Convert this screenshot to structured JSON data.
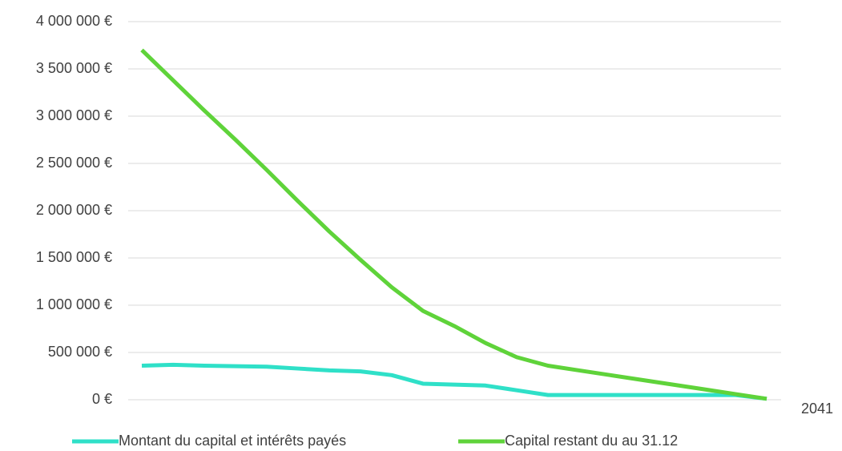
{
  "chart_data": {
    "type": "line",
    "categories": [
      null,
      null,
      null,
      null,
      null,
      null,
      null,
      null,
      null,
      null,
      null,
      null,
      null,
      null,
      null,
      null,
      null,
      null,
      null,
      null,
      "2041"
    ],
    "series": [
      {
        "name": "Montant du capital et intérêts payés",
        "color": "#2fe0c8",
        "values": [
          360000,
          370000,
          360000,
          355000,
          350000,
          330000,
          310000,
          300000,
          260000,
          170000,
          160000,
          150000,
          100000,
          50000,
          50000,
          50000,
          50000,
          50000,
          50000,
          50000,
          10000
        ]
      },
      {
        "name": "Capital restant du au 31.12",
        "color": "#5fd33a",
        "values": [
          3700000,
          3380000,
          3060000,
          2750000,
          2430000,
          2100000,
          1780000,
          1480000,
          1190000,
          940000,
          780000,
          600000,
          450000,
          360000,
          310000,
          260000,
          210000,
          160000,
          110000,
          60000,
          10000
        ]
      }
    ],
    "ylim": [
      0,
      4000000
    ],
    "yticks": [
      {
        "value": 0,
        "label": "0 €"
      },
      {
        "value": 500000,
        "label": "500 000 €"
      },
      {
        "value": 1000000,
        "label": "1 000 000 €"
      },
      {
        "value": 1500000,
        "label": "1 500 000 €"
      },
      {
        "value": 2000000,
        "label": "2 000 000 €"
      },
      {
        "value": 2500000,
        "label": "2 500 000 €"
      },
      {
        "value": 3000000,
        "label": "3 000 000 €"
      },
      {
        "value": 3500000,
        "label": "3 500 000 €"
      },
      {
        "value": 4000000,
        "label": "4 000 000 €"
      }
    ],
    "grid": true,
    "legend": "bottom"
  }
}
